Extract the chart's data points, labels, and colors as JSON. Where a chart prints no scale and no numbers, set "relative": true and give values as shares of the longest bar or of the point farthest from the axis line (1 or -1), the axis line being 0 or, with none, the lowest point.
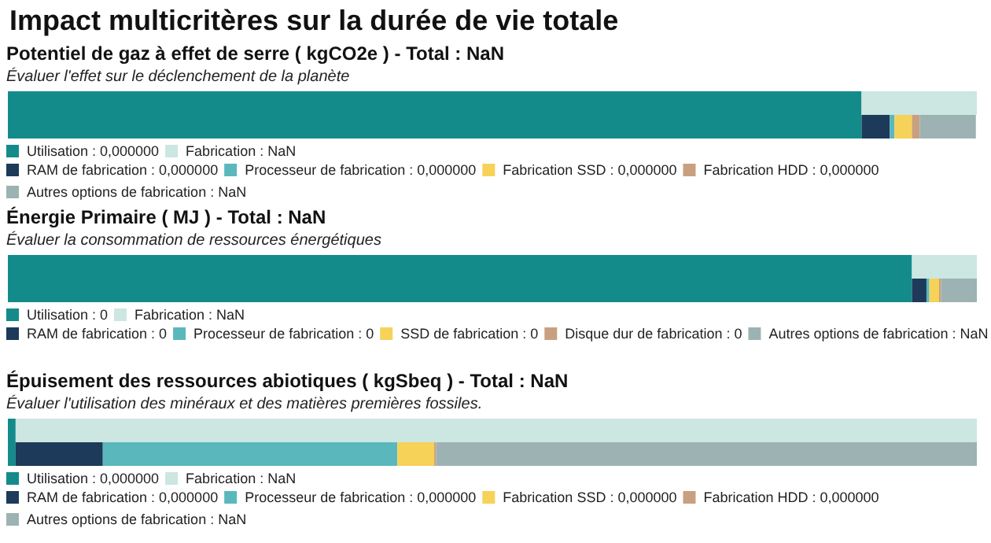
{
  "chart_data": [
    {
      "type": "bar",
      "title": "Potentiel de gaz à effet de serre ( kgCO2e ) - Total : NaN",
      "subtitle": "Évaluer l'effet sur le déclenchement de la planète",
      "annotations": [
        "Impact multicritères sur la durée de vie totale"
      ],
      "categories": [
        null,
        null
      ],
      "stacked": true,
      "orientation": "horizontal",
      "relative": true,
      "legend": "bottom",
      "series": [
        {
          "name": "Utilisation : 0,000000",
          "color": "#148b8b",
          "values": [
            0.881,
            0.881
          ]
        },
        {
          "name": "Fabrication : NaN",
          "color": "#cce6e2",
          "values": [
            0.119,
            null
          ]
        },
        {
          "name": "RAM de fabrication : 0,000000",
          "color": "#1d3a5a",
          "values": [
            null,
            0.029
          ]
        },
        {
          "name": "Processeur de fabrication : 0,000000",
          "color": "#5ab8bd",
          "values": [
            null,
            0.005
          ]
        },
        {
          "name": "Fabrication SSD : 0,000000",
          "color": "#f6d258",
          "values": [
            null,
            0.018
          ]
        },
        {
          "name": "Fabrication HDD : 0,000000",
          "color": "#c9a07f",
          "values": [
            null,
            0.008
          ]
        },
        {
          "name": "Autres options de fabrication : NaN",
          "color": "#9db3b3",
          "values": [
            null,
            0.058
          ]
        }
      ]
    },
    {
      "type": "bar",
      "title": "Énergie Primaire ( MJ ) - Total : NaN",
      "subtitle": "Évaluer la consommation de ressources énergétiques",
      "categories": [
        null,
        null
      ],
      "stacked": true,
      "orientation": "horizontal",
      "relative": true,
      "legend": "bottom",
      "series": [
        {
          "name": "Utilisation : 0",
          "color": "#148b8b",
          "values": [
            0.933,
            0.933
          ]
        },
        {
          "name": "Fabrication : NaN",
          "color": "#cce6e2",
          "values": [
            0.067,
            null
          ]
        },
        {
          "name": "RAM de fabrication : 0",
          "color": "#1d3a5a",
          "values": [
            null,
            0.015
          ]
        },
        {
          "name": "Processeur de fabrication : 0",
          "color": "#5ab8bd",
          "values": [
            null,
            0.003
          ]
        },
        {
          "name": "SSD de fabrication : 0",
          "color": "#f6d258",
          "values": [
            null,
            0.01
          ]
        },
        {
          "name": "Disque dur de fabrication : 0",
          "color": "#c9a07f",
          "values": [
            null,
            0.002
          ]
        },
        {
          "name": "Autres options de fabrication : NaN",
          "color": "#9db3b3",
          "values": [
            null,
            0.037
          ]
        }
      ]
    },
    {
      "type": "bar",
      "title": "Épuisement des ressources abiotiques ( kgSbeq ) - Total : NaN",
      "subtitle": "Évaluer l'utilisation des minéraux et des matières premières fossiles.",
      "categories": [
        null,
        null
      ],
      "stacked": true,
      "orientation": "horizontal",
      "relative": true,
      "legend": "bottom",
      "series": [
        {
          "name": "Utilisation : 0,000000",
          "color": "#148b8b",
          "values": [
            0.008,
            0.008
          ]
        },
        {
          "name": "Fabrication : NaN",
          "color": "#cce6e2",
          "values": [
            0.992,
            null
          ]
        },
        {
          "name": "RAM de fabrication : 0,000000",
          "color": "#1d3a5a",
          "values": [
            null,
            0.09
          ]
        },
        {
          "name": "Processeur de fabrication : 0,000000",
          "color": "#5ab8bd",
          "values": [
            null,
            0.304
          ]
        },
        {
          "name": "Fabrication SSD : 0,000000",
          "color": "#f6d258",
          "values": [
            null,
            0.038
          ]
        },
        {
          "name": "Fabrication HDD : 0,000000",
          "color": "#c9a07f",
          "values": [
            null,
            0.002
          ]
        },
        {
          "name": "Autres options de fabrication : NaN",
          "color": "#9db3b3",
          "values": [
            null,
            0.558
          ]
        }
      ]
    }
  ]
}
